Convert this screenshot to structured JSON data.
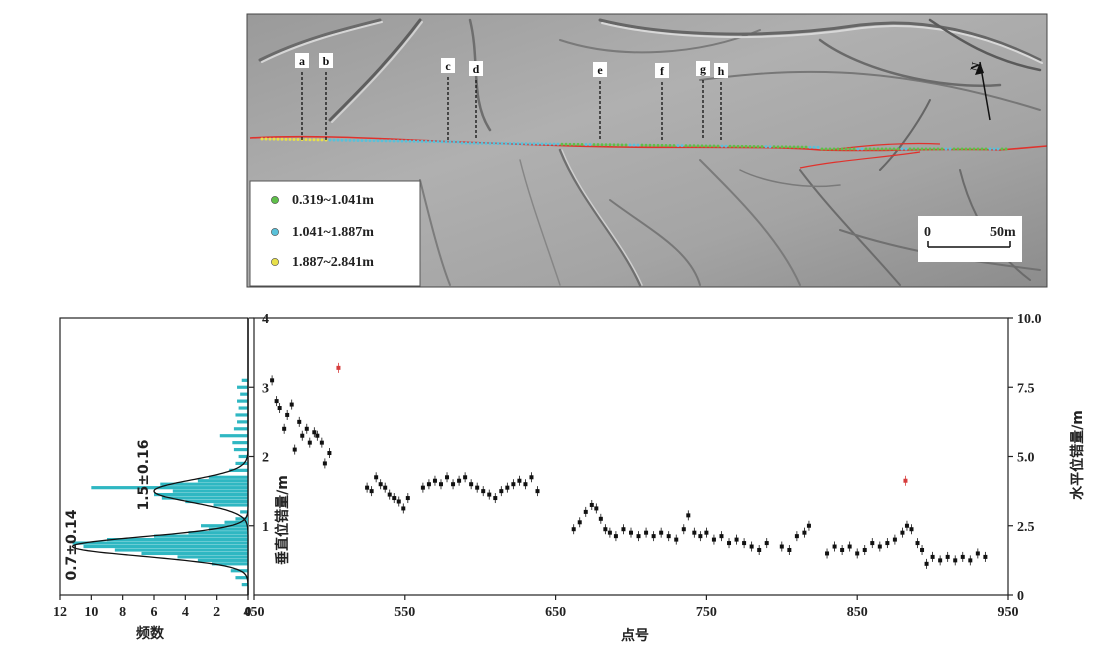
{
  "map": {
    "markers": [
      "a",
      "b",
      "c",
      "d",
      "e",
      "f",
      "g",
      "h"
    ],
    "north_label": "N",
    "scale_labels": [
      "0",
      "50m"
    ],
    "legend": [
      {
        "label": "0.319~1.041m",
        "color": "#5fbf4a"
      },
      {
        "label": "1.041~1.887m",
        "color": "#59c1d9"
      },
      {
        "label": "1.887~2.841m",
        "color": "#e8e04a"
      }
    ],
    "fault_color": "#e0322c"
  },
  "chart_data": [
    {
      "type": "bar",
      "orientation": "horizontal",
      "xlabel": "频数",
      "x_ticks": [
        12,
        10,
        8,
        6,
        4,
        2,
        0
      ],
      "xlim": [
        12,
        0
      ],
      "ylim": [
        0,
        4
      ],
      "bar_color": "#2fb7c2",
      "bins": [
        {
          "y": 0.15,
          "count": 0.4
        },
        {
          "y": 0.25,
          "count": 0.8
        },
        {
          "y": 0.35,
          "count": 1.1
        },
        {
          "y": 0.45,
          "count": 2.3
        },
        {
          "y": 0.5,
          "count": 3.2
        },
        {
          "y": 0.55,
          "count": 4.5
        },
        {
          "y": 0.6,
          "count": 6.8
        },
        {
          "y": 0.65,
          "count": 8.5
        },
        {
          "y": 0.7,
          "count": 10.5
        },
        {
          "y": 0.75,
          "count": 11.2
        },
        {
          "y": 0.8,
          "count": 9.0
        },
        {
          "y": 0.85,
          "count": 6.0
        },
        {
          "y": 0.9,
          "count": 3.8
        },
        {
          "y": 0.95,
          "count": 2.5
        },
        {
          "y": 1.0,
          "count": 3.0
        },
        {
          "y": 1.05,
          "count": 1.5
        },
        {
          "y": 1.1,
          "count": 0.8
        },
        {
          "y": 1.2,
          "count": 0.5
        },
        {
          "y": 1.3,
          "count": 2.2
        },
        {
          "y": 1.35,
          "count": 4.0
        },
        {
          "y": 1.4,
          "count": 5.5
        },
        {
          "y": 1.45,
          "count": 6.0
        },
        {
          "y": 1.5,
          "count": 4.8
        },
        {
          "y": 1.55,
          "count": 10.0
        },
        {
          "y": 1.6,
          "count": 5.6
        },
        {
          "y": 1.65,
          "count": 3.2
        },
        {
          "y": 1.7,
          "count": 2.5
        },
        {
          "y": 1.8,
          "count": 1.2
        },
        {
          "y": 1.9,
          "count": 0.8
        },
        {
          "y": 2.0,
          "count": 0.6
        },
        {
          "y": 2.1,
          "count": 0.9
        },
        {
          "y": 2.2,
          "count": 1.0
        },
        {
          "y": 2.3,
          "count": 1.8
        },
        {
          "y": 2.4,
          "count": 0.9
        },
        {
          "y": 2.5,
          "count": 0.7
        },
        {
          "y": 2.6,
          "count": 0.8
        },
        {
          "y": 2.7,
          "count": 0.6
        },
        {
          "y": 2.8,
          "count": 0.7
        },
        {
          "y": 2.9,
          "count": 0.5
        },
        {
          "y": 3.0,
          "count": 0.7
        },
        {
          "y": 3.1,
          "count": 0.4
        }
      ],
      "fits": [
        {
          "label": "0.7±0.14",
          "mean": 0.7,
          "sd": 0.14,
          "peak": 11.2
        },
        {
          "label": "1.5±0.16",
          "mean": 1.5,
          "sd": 0.16,
          "peak": 6.0
        }
      ]
    },
    {
      "type": "scatter",
      "xlabel": "点号",
      "ylabel": "垂直位错量/m",
      "y2label": "水平位错量/m",
      "xlim": [
        450,
        950
      ],
      "ylim": [
        0,
        4
      ],
      "y2lim": [
        0,
        10
      ],
      "x_ticks": [
        450,
        550,
        650,
        750,
        850,
        950
      ],
      "y_ticks": [
        1,
        2,
        3,
        4
      ],
      "y2_ticks": [
        "0",
        "2.5",
        "5.0",
        "7.5",
        "10.0"
      ],
      "series": [
        {
          "color": "#111111",
          "points": [
            [
              462,
              3.1
            ],
            [
              465,
              2.8
            ],
            [
              467,
              2.7
            ],
            [
              470,
              2.4
            ],
            [
              472,
              2.6
            ],
            [
              475,
              2.75
            ],
            [
              477,
              2.1
            ],
            [
              480,
              2.5
            ],
            [
              482,
              2.3
            ],
            [
              485,
              2.4
            ],
            [
              487,
              2.2
            ],
            [
              490,
              2.35
            ],
            [
              492,
              2.3
            ],
            [
              495,
              2.2
            ],
            [
              497,
              1.9
            ],
            [
              500,
              2.05
            ],
            [
              525,
              1.55
            ],
            [
              528,
              1.5
            ],
            [
              531,
              1.7
            ],
            [
              534,
              1.6
            ],
            [
              537,
              1.55
            ],
            [
              540,
              1.45
            ],
            [
              543,
              1.4
            ],
            [
              546,
              1.35
            ],
            [
              549,
              1.25
            ],
            [
              552,
              1.4
            ],
            [
              562,
              1.55
            ],
            [
              566,
              1.6
            ],
            [
              570,
              1.65
            ],
            [
              574,
              1.6
            ],
            [
              578,
              1.7
            ],
            [
              582,
              1.6
            ],
            [
              586,
              1.65
            ],
            [
              590,
              1.7
            ],
            [
              594,
              1.6
            ],
            [
              598,
              1.55
            ],
            [
              602,
              1.5
            ],
            [
              606,
              1.45
            ],
            [
              610,
              1.4
            ],
            [
              614,
              1.5
            ],
            [
              618,
              1.55
            ],
            [
              622,
              1.6
            ],
            [
              626,
              1.65
            ],
            [
              630,
              1.6
            ],
            [
              634,
              1.7
            ],
            [
              638,
              1.5
            ],
            [
              662,
              0.95
            ],
            [
              666,
              1.05
            ],
            [
              670,
              1.2
            ],
            [
              674,
              1.3
            ],
            [
              677,
              1.25
            ],
            [
              680,
              1.1
            ],
            [
              683,
              0.95
            ],
            [
              686,
              0.9
            ],
            [
              690,
              0.85
            ],
            [
              695,
              0.95
            ],
            [
              700,
              0.9
            ],
            [
              705,
              0.85
            ],
            [
              710,
              0.9
            ],
            [
              715,
              0.85
            ],
            [
              720,
              0.9
            ],
            [
              725,
              0.85
            ],
            [
              730,
              0.8
            ],
            [
              735,
              0.95
            ],
            [
              738,
              1.15
            ],
            [
              742,
              0.9
            ],
            [
              746,
              0.85
            ],
            [
              750,
              0.9
            ],
            [
              755,
              0.8
            ],
            [
              760,
              0.85
            ],
            [
              765,
              0.75
            ],
            [
              770,
              0.8
            ],
            [
              775,
              0.75
            ],
            [
              780,
              0.7
            ],
            [
              785,
              0.65
            ],
            [
              790,
              0.75
            ],
            [
              800,
              0.7
            ],
            [
              805,
              0.65
            ],
            [
              810,
              0.85
            ],
            [
              815,
              0.9
            ],
            [
              818,
              1.0
            ],
            [
              830,
              0.6
            ],
            [
              835,
              0.7
            ],
            [
              840,
              0.65
            ],
            [
              845,
              0.7
            ],
            [
              850,
              0.6
            ],
            [
              855,
              0.65
            ],
            [
              860,
              0.75
            ],
            [
              865,
              0.7
            ],
            [
              870,
              0.75
            ],
            [
              875,
              0.8
            ],
            [
              880,
              0.9
            ],
            [
              883,
              1.0
            ],
            [
              886,
              0.95
            ],
            [
              890,
              0.75
            ],
            [
              893,
              0.65
            ],
            [
              896,
              0.45
            ],
            [
              900,
              0.55
            ],
            [
              905,
              0.5
            ],
            [
              910,
              0.55
            ],
            [
              915,
              0.5
            ],
            [
              920,
              0.55
            ],
            [
              925,
              0.5
            ],
            [
              930,
              0.6
            ],
            [
              935,
              0.55
            ]
          ]
        },
        {
          "color": "#d63c3c",
          "points": [
            [
              506,
              3.28
            ],
            [
              882,
              1.65
            ]
          ]
        }
      ]
    }
  ]
}
